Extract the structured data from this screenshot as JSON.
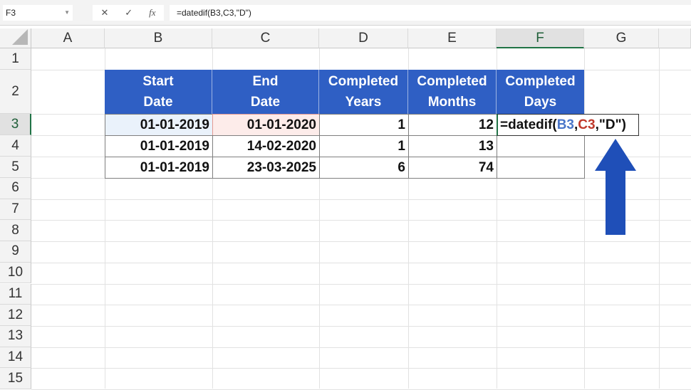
{
  "formula_bar": {
    "name_box": "F3",
    "cancel_icon": "✕",
    "enter_icon": "✓",
    "fx_label": "fx",
    "formula": "=datedif(B3,C3,\"D\")"
  },
  "columns": [
    "A",
    "B",
    "C",
    "D",
    "E",
    "F",
    "G"
  ],
  "rows": [
    "1",
    "2",
    "3",
    "4",
    "5",
    "6",
    "7",
    "8",
    "9",
    "10",
    "11",
    "12",
    "13",
    "14",
    "15"
  ],
  "selected_cell": "F3",
  "table": {
    "headers": [
      [
        "Start",
        "Date"
      ],
      [
        "End",
        "Date"
      ],
      [
        "Completed",
        "Years"
      ],
      [
        "Completed",
        "Months"
      ],
      [
        "Completed",
        "Days"
      ]
    ],
    "rows": [
      [
        "01-01-2019",
        "01-01-2020",
        "1",
        "12"
      ],
      [
        "01-01-2019",
        "14-02-2020",
        "1",
        "13"
      ],
      [
        "01-01-2019",
        "23-03-2025",
        "6",
        "74"
      ]
    ],
    "editing_formula": {
      "prefix": "=datedif(",
      "ref1": "B3",
      "sep1": ",",
      "ref2": "C3",
      "suffix": ",\"D\")"
    }
  },
  "colors": {
    "header_fill": "#2f5fc4",
    "ref1": "#4a76c9",
    "ref2": "#c0392b",
    "arrow": "#1f4fb8",
    "selection": "#217346"
  }
}
